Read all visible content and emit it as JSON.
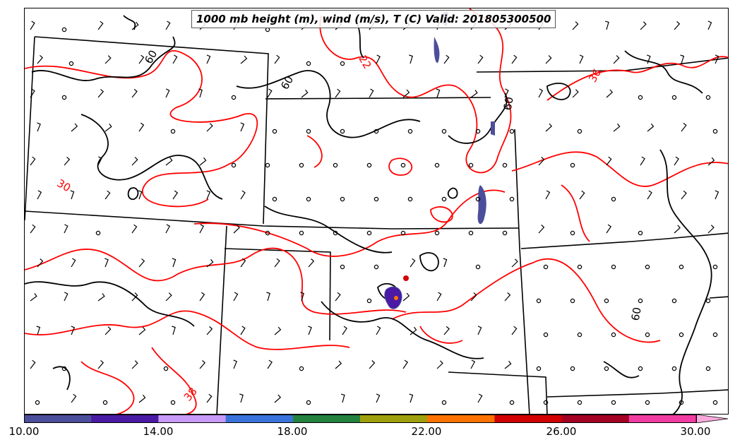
{
  "title": "1000 mb height (m), wind (m/s), T (C) Valid: 201805300500",
  "colorbar": {
    "ticks": [
      "10.00",
      "14.00",
      "18.00",
      "22.00",
      "26.00",
      "30.00"
    ],
    "min": 10,
    "max": 31,
    "colors": [
      "#4b4e9a",
      "#4a1aa4",
      "#c79af7",
      "#3a72dc",
      "#23823e",
      "#9fa00d",
      "#ff7200",
      "#d20000",
      "#a30022",
      "#f13ca1",
      "#f9a8dc"
    ]
  },
  "contour_labels": {
    "height": [
      "60",
      "60",
      "60",
      "60"
    ],
    "temperature": [
      "22",
      "36",
      "30",
      "38"
    ]
  },
  "colors": {
    "height_contour": "#000000",
    "temperature_contour": "#ff0000",
    "state_border": "#000000"
  }
}
